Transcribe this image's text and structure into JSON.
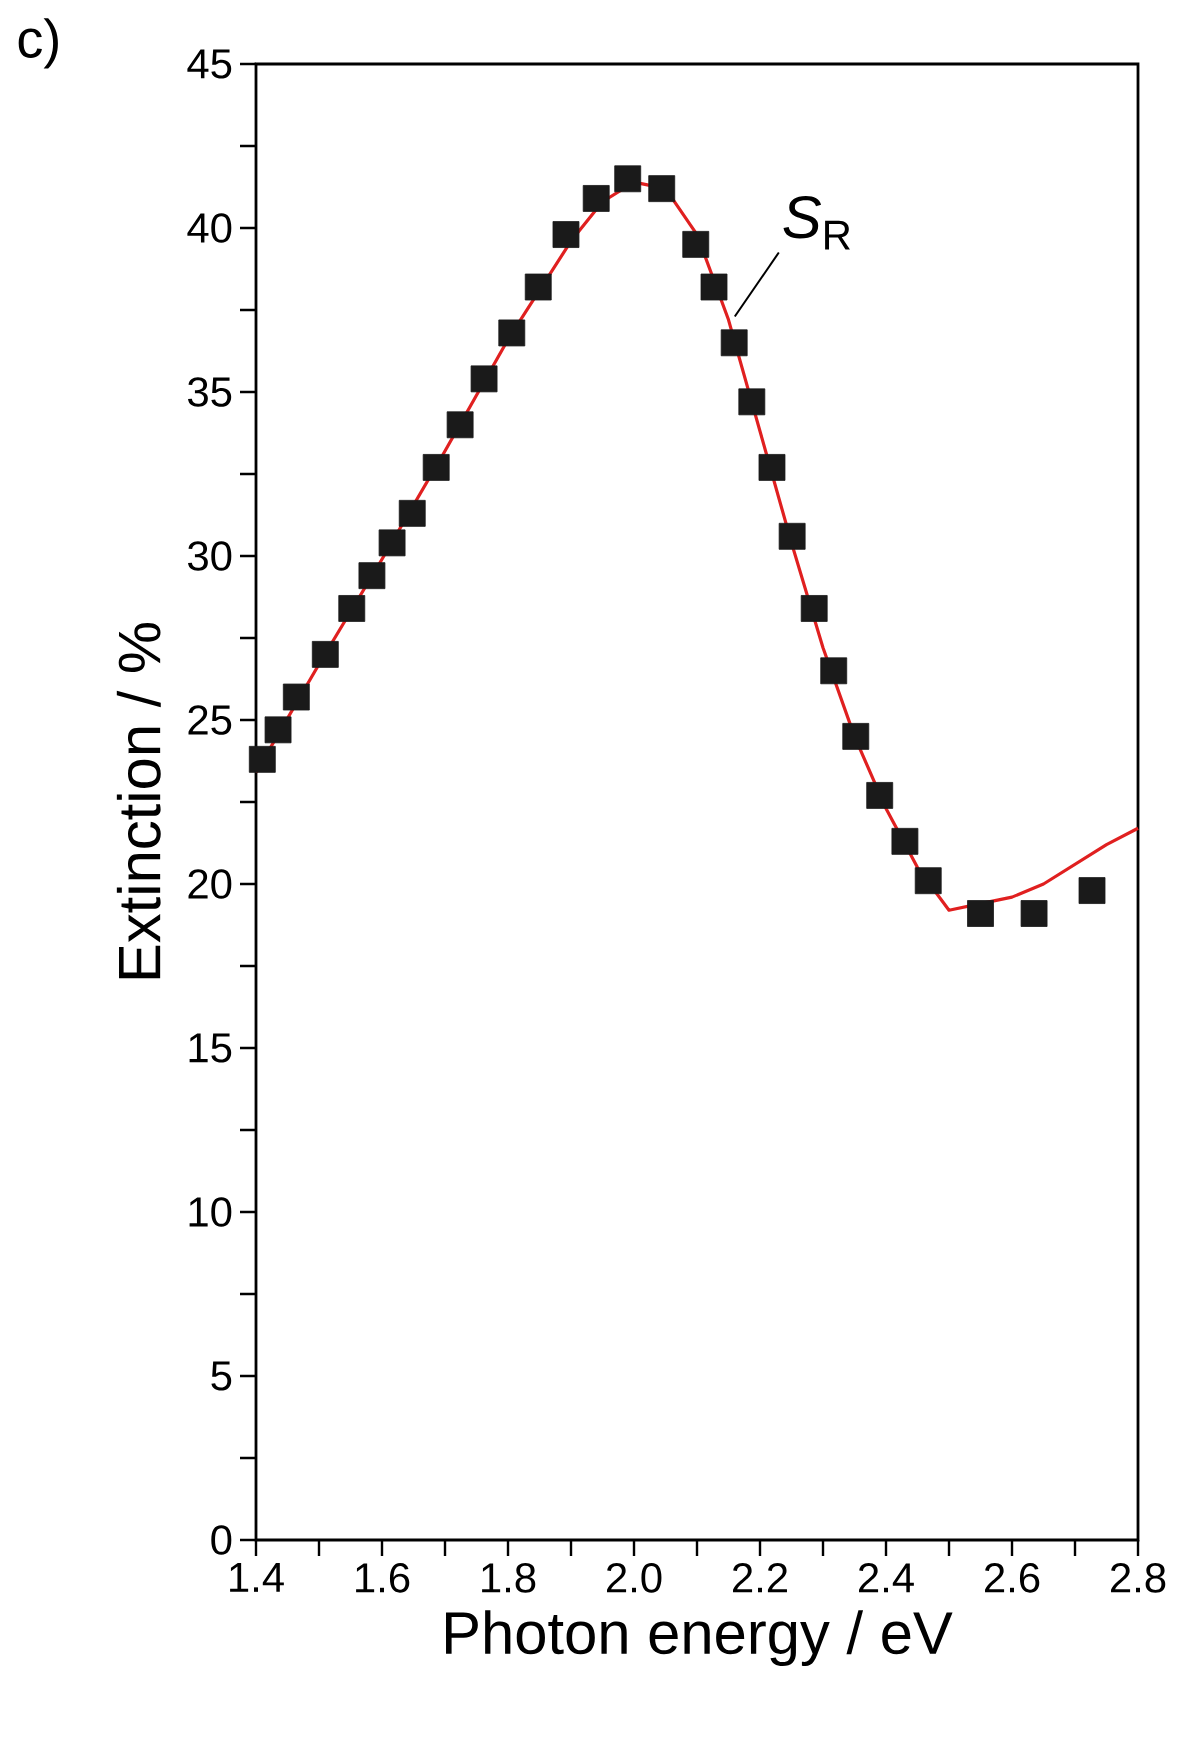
{
  "chart_data": {
    "type": "scatter",
    "xlabel": "Photon energy / eV",
    "ylabel": "Extinction / %",
    "xlim": [
      1.4,
      2.8
    ],
    "ylim": [
      0,
      45
    ],
    "xticks": [
      {
        "value": 1.4,
        "label": "1.4"
      },
      {
        "value": 1.6,
        "label": "1.6"
      },
      {
        "value": 1.8,
        "label": "1.8"
      },
      {
        "value": 2.0,
        "label": "2.0"
      },
      {
        "value": 2.2,
        "label": "2.2"
      },
      {
        "value": 2.4,
        "label": "2.4"
      },
      {
        "value": 2.6,
        "label": "2.6"
      },
      {
        "value": 2.8,
        "label": "2.8"
      }
    ],
    "yticks": [
      0,
      5,
      10,
      15,
      20,
      25,
      30,
      35,
      40,
      45
    ],
    "annotations": [
      "c)",
      {
        "text": "*S*$_{R}$",
        "x": 2.16,
        "y": 37.3
      }
    ],
    "series": [
      {
        "color": "#1a1a1a",
        "marker": "square",
        "x": [
          1.41,
          1.435,
          1.464,
          1.51,
          1.552,
          1.584,
          1.616,
          1.648,
          1.686,
          1.724,
          1.762,
          1.806,
          1.848,
          1.892,
          1.94,
          1.99,
          2.044,
          2.098,
          2.127,
          2.159,
          2.187,
          2.219,
          2.251,
          2.286,
          2.317,
          2.352,
          2.39,
          2.43,
          2.467,
          2.55,
          2.635,
          2.727
        ],
        "values": [
          23.8,
          24.7,
          25.7,
          27.0,
          28.4,
          29.4,
          30.4,
          31.3,
          32.7,
          34.0,
          35.4,
          36.8,
          38.2,
          39.8,
          40.9,
          41.5,
          41.2,
          39.5,
          38.2,
          36.5,
          34.7,
          32.7,
          30.6,
          28.4,
          26.5,
          24.5,
          22.7,
          21.3,
          20.1,
          19.1,
          19.1,
          19.8
        ]
      },
      {
        "type": "line",
        "color": "#e02020",
        "line_style": "solid",
        "x": [
          1.4,
          1.5,
          1.6,
          1.7,
          1.8,
          1.9,
          1.95,
          2.0,
          2.05,
          2.1,
          2.15,
          2.2,
          2.25,
          2.3,
          2.35,
          2.4,
          2.45,
          2.5,
          2.55,
          2.6,
          2.65,
          2.7,
          2.75,
          2.8
        ],
        "values": [
          23.4,
          26.7,
          29.9,
          33.2,
          36.6,
          39.6,
          40.8,
          41.4,
          41.2,
          39.8,
          37.2,
          33.8,
          30.4,
          27.2,
          24.5,
          22.3,
          20.5,
          19.2,
          19.4,
          19.6,
          20.0,
          20.6,
          21.2,
          21.7
        ]
      }
    ]
  }
}
